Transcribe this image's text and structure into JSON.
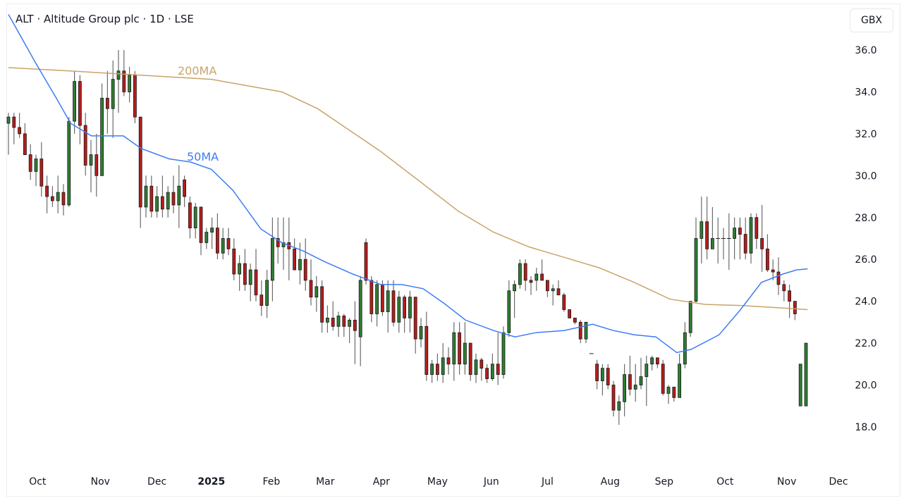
{
  "header": {
    "title": "ALT · Altitude Group plc · 1D · LSE",
    "currency": "GBX"
  },
  "colors": {
    "up": "#2e7d32",
    "down": "#b71c1c",
    "ma200": "#c9a36b",
    "ma50": "#3d7cf5",
    "wick": "#6b6b6b"
  },
  "chart_data": {
    "type": "candlestick",
    "title": "ALT · Altitude Group plc · 1D · LSE",
    "ylabel": "GBX",
    "ylim": [
      17.0,
      38.0
    ],
    "yticks": [
      "36.0",
      "34.0",
      "32.0",
      "30.0",
      "28.0",
      "26.0",
      "24.0",
      "22.0",
      "20.0",
      "18.0"
    ],
    "ytick_values": [
      36,
      34,
      32,
      30,
      28,
      26,
      24,
      22,
      20,
      18
    ],
    "xticks": [
      {
        "label": "Oct",
        "index": 5.3
      },
      {
        "label": "Nov",
        "index": 16.7
      },
      {
        "label": "Dec",
        "index": 27
      },
      {
        "label": "2025",
        "index": 36.9
      },
      {
        "label": "Feb",
        "index": 47.8
      },
      {
        "label": "Mar",
        "index": 57.6
      },
      {
        "label": "Apr",
        "index": 67.8
      },
      {
        "label": "May",
        "index": 78
      },
      {
        "label": "Jun",
        "index": 87.8
      },
      {
        "label": "Jul",
        "index": 98
      },
      {
        "label": "Aug",
        "index": 109.4
      },
      {
        "label": "Sep",
        "index": 119.2
      },
      {
        "label": "Oct",
        "index": 130.3
      },
      {
        "label": "Nov",
        "index": 141.5
      },
      {
        "label": "Dec",
        "index": 150.9
      }
    ],
    "ohlc": [
      [
        32.5,
        33,
        31,
        32.8
      ],
      [
        32.8,
        33,
        31.5,
        32.3
      ],
      [
        32.3,
        33,
        31.8,
        32.0
      ],
      [
        32,
        32.5,
        31,
        31
      ],
      [
        31,
        31.5,
        29.8,
        30.2
      ],
      [
        30.2,
        31,
        29.5,
        30.8
      ],
      [
        30.8,
        31.6,
        29,
        29.5
      ],
      [
        29.5,
        30,
        28.2,
        29
      ],
      [
        29,
        29.5,
        28.5,
        28.8
      ],
      [
        28.8,
        30,
        28.2,
        29.2
      ],
      [
        29.2,
        29.6,
        28.1,
        28.6
      ],
      [
        28.6,
        32.8,
        28.5,
        32.6
      ],
      [
        32.6,
        35,
        32,
        34.5
      ],
      [
        34.5,
        34.8,
        31.5,
        32.4
      ],
      [
        32.4,
        33,
        30,
        30.5
      ],
      [
        30.5,
        31.7,
        29.2,
        31
      ],
      [
        31,
        32,
        29,
        30.0
      ],
      [
        30,
        34.4,
        30,
        33.7
      ],
      [
        33.7,
        35,
        32,
        33.2
      ],
      [
        33.2,
        35.5,
        31.8,
        34.6
      ],
      [
        34.6,
        36,
        33,
        35
      ],
      [
        35,
        36,
        33.8,
        34.0
      ],
      [
        34,
        35.2,
        33.5,
        34.8
      ],
      [
        34.8,
        35,
        32.5,
        32.8
      ],
      [
        32.8,
        32.8,
        27.5,
        28.5
      ],
      [
        28.5,
        30,
        28,
        29.5
      ],
      [
        29.5,
        30,
        28,
        28.3
      ],
      [
        28.3,
        29.5,
        28,
        29
      ],
      [
        29,
        30,
        28,
        28.4
      ],
      [
        28.4,
        29.5,
        28,
        29.2
      ],
      [
        29.2,
        30,
        28.2,
        28.6
      ],
      [
        28.6,
        30.5,
        27.5,
        29.5
      ],
      [
        29.8,
        30,
        28.5,
        29.0
      ],
      [
        28.7,
        29,
        27,
        27.5
      ],
      [
        27.5,
        28.7,
        27,
        28.5
      ],
      [
        28.5,
        28.5,
        26.2,
        26.8
      ],
      [
        26.8,
        27.5,
        26.5,
        27.3
      ],
      [
        27.3,
        28,
        26.5,
        27.5
      ],
      [
        27.5,
        28.2,
        26,
        26.3
      ],
      [
        26.3,
        27.5,
        26,
        27.0
      ],
      [
        27,
        27.5,
        26.2,
        26.5
      ],
      [
        26.5,
        27,
        25,
        25.3
      ],
      [
        25.3,
        26.2,
        24.5,
        25.8
      ],
      [
        25.8,
        26.5,
        24.5,
        24.8
      ],
      [
        24.8,
        25.8,
        24,
        25.5
      ],
      [
        25.5,
        26.5,
        24,
        24.3
      ],
      [
        24.3,
        25,
        23.3,
        23.8
      ],
      [
        23.8,
        25.5,
        23.2,
        25
      ],
      [
        25,
        28,
        24,
        27.0
      ],
      [
        27,
        28,
        25.8,
        26.6
      ],
      [
        26.6,
        28,
        25.5,
        26.8
      ],
      [
        26.8,
        28,
        25,
        26.5
      ],
      [
        26.5,
        27,
        25.5,
        25.5
      ],
      [
        25.5,
        26.8,
        24.8,
        26.0
      ],
      [
        26.0,
        27,
        24.5,
        25.0
      ],
      [
        25,
        26,
        23.8,
        24.2
      ],
      [
        24.2,
        25.2,
        23.5,
        24.7
      ],
      [
        24.7,
        25,
        22.5,
        23.0
      ],
      [
        23,
        23.8,
        22.5,
        23.2
      ],
      [
        23.2,
        24,
        22.6,
        22.8
      ],
      [
        22.8,
        23.5,
        22.3,
        23.3
      ],
      [
        23.3,
        23.4,
        22.3,
        22.8
      ],
      [
        22.8,
        23.2,
        22,
        23.1
      ],
      [
        23.1,
        24,
        21,
        22.6
      ],
      [
        22.3,
        25.2,
        20.9,
        25.0
      ],
      [
        26.8,
        27,
        24.8,
        25.0
      ],
      [
        25,
        25.2,
        23,
        23.4
      ],
      [
        23.4,
        25,
        22.8,
        24.8
      ],
      [
        24.8,
        25,
        23.3,
        23.5
      ],
      [
        23.5,
        25,
        22.5,
        24.5
      ],
      [
        24.5,
        25,
        22.8,
        23.0
      ],
      [
        23,
        24.5,
        22.5,
        24.2
      ],
      [
        24.2,
        24.3,
        22.5,
        23.2
      ],
      [
        23.2,
        24.5,
        22.5,
        24.2
      ],
      [
        24.2,
        24.2,
        21.5,
        22.2
      ],
      [
        22.2,
        23.2,
        21.8,
        22.8
      ],
      [
        22.8,
        23.5,
        20.2,
        20.5
      ],
      [
        20.5,
        21.2,
        20.1,
        21.0
      ],
      [
        21,
        21.5,
        20.2,
        20.5
      ],
      [
        20.5,
        22,
        20.1,
        21.3
      ],
      [
        21.3,
        21.8,
        20.5,
        21.0
      ],
      [
        21,
        23,
        20.2,
        22.5
      ],
      [
        22.5,
        23,
        20.5,
        21.0
      ],
      [
        21,
        23,
        20.5,
        22.0
      ],
      [
        22,
        22,
        20.2,
        20.5
      ],
      [
        20.5,
        21.5,
        20.1,
        21.2
      ],
      [
        21.2,
        21.3,
        20.2,
        20.8
      ],
      [
        20.8,
        21,
        20.1,
        20.3
      ],
      [
        20.3,
        21.5,
        20.2,
        21.0
      ],
      [
        21,
        22.5,
        20.0,
        20.5
      ],
      [
        20.5,
        22.8,
        20.3,
        22.5
      ],
      [
        22.5,
        25,
        22.3,
        24.5
      ],
      [
        24.5,
        25,
        23.2,
        24.8
      ],
      [
        24.8,
        26,
        24.6,
        25.8
      ],
      [
        25.8,
        26,
        24.5,
        25.0
      ],
      [
        25,
        25.2,
        24.3,
        24.9
      ],
      [
        25.0,
        25.6,
        24.5,
        25.3
      ],
      [
        25.3,
        26,
        25,
        25.0
      ],
      [
        25,
        25,
        24.2,
        24.5
      ],
      [
        24.5,
        24.8,
        23.8,
        24.6
      ],
      [
        24.6,
        25,
        24.3,
        24.3
      ],
      [
        24.3,
        24.4,
        23.5,
        23.6
      ],
      [
        23.6,
        23.6,
        23.2,
        23.2
      ],
      [
        23.2,
        23.2,
        22.9,
        23.0
      ],
      [
        23.0,
        23.1,
        22.0,
        22.2
      ],
      [
        22.2,
        23,
        22.0,
        23.0
      ],
      [
        21.5,
        21.5,
        21.5,
        21.5
      ],
      [
        21.0,
        21.2,
        19.8,
        20.2
      ],
      [
        20.2,
        21,
        19.5,
        20.8
      ],
      [
        20.8,
        21,
        19.8,
        20.0
      ],
      [
        20.0,
        20.2,
        18.5,
        18.8
      ],
      [
        18.8,
        19.5,
        18.1,
        19.2
      ],
      [
        19.2,
        21,
        18.5,
        20.5
      ],
      [
        20.5,
        21.4,
        19.5,
        19.8
      ],
      [
        19.8,
        21,
        19.2,
        20.0
      ],
      [
        20.0,
        21.3,
        19.8,
        20.4
      ],
      [
        20.4,
        21.4,
        19.0,
        21.0
      ],
      [
        21.0,
        21.4,
        20.7,
        21.3
      ],
      [
        21.3,
        21.3,
        20.8,
        21.0
      ],
      [
        21,
        21.2,
        19.5,
        19.6
      ],
      [
        19.6,
        20,
        19.1,
        19.9
      ],
      [
        19.9,
        19.9,
        19.2,
        19.4
      ],
      [
        19.4,
        21.5,
        19.4,
        21.0
      ],
      [
        21,
        23,
        20.8,
        22.5
      ],
      [
        22.5,
        24,
        22.3,
        24
      ],
      [
        24,
        28,
        23.9,
        27
      ],
      [
        27,
        29,
        25.8,
        27.8
      ],
      [
        27.8,
        29,
        26,
        26.5
      ],
      [
        26.5,
        28.5,
        26.5,
        27.0
      ],
      [
        27,
        28,
        25.8,
        27.0
      ],
      [
        27,
        27.5,
        26,
        27.0
      ],
      [
        27,
        28.2,
        25.5,
        27.0
      ],
      [
        27,
        28,
        26,
        27.5
      ],
      [
        27.5,
        28,
        26,
        27.2
      ],
      [
        27.2,
        28,
        26,
        26.3
      ],
      [
        26.3,
        28.2,
        25.8,
        28.0
      ],
      [
        28,
        28.2,
        26.5,
        27.0
      ],
      [
        27,
        28.6,
        25.4,
        26.5
      ],
      [
        26.5,
        27.2,
        25.4,
        25.5
      ],
      [
        25.5,
        26,
        25,
        25.4
      ],
      [
        25.4,
        26.1,
        24.3,
        24.8
      ],
      [
        24.8,
        25,
        24,
        24.5
      ],
      [
        24.5,
        24.8,
        23.2,
        24.0
      ],
      [
        24,
        24,
        23.1,
        23.4
      ],
      [
        19,
        21,
        19,
        21
      ],
      [
        19,
        22,
        19,
        22
      ]
    ],
    "series": [
      {
        "name": "200MA",
        "label": "200MA",
        "points": [
          [
            0,
            35.16
          ],
          [
            11.3,
            35.0
          ],
          [
            24.1,
            34.8
          ],
          [
            36.9,
            34.6
          ],
          [
            49.7,
            34.0
          ],
          [
            56.2,
            33.2
          ],
          [
            67.7,
            31.15
          ],
          [
            75.4,
            29.6
          ],
          [
            81.8,
            28.3
          ],
          [
            88.2,
            27.3
          ],
          [
            94.6,
            26.6
          ],
          [
            101,
            26.1
          ],
          [
            107.4,
            25.6
          ],
          [
            113.8,
            24.9
          ],
          [
            120.3,
            24.1
          ],
          [
            126.7,
            23.85
          ],
          [
            133.1,
            23.8
          ],
          [
            139.5,
            23.7
          ],
          [
            145.3,
            23.6
          ]
        ]
      },
      {
        "name": "50MA",
        "label": "50MA",
        "points": [
          [
            0,
            37.7
          ],
          [
            4.9,
            35.4
          ],
          [
            8.7,
            33.7
          ],
          [
            11.3,
            32.5
          ],
          [
            15.1,
            31.9
          ],
          [
            20.9,
            31.9
          ],
          [
            24.1,
            31.3
          ],
          [
            29.2,
            30.8
          ],
          [
            33.1,
            30.65
          ],
          [
            36.9,
            30.3
          ],
          [
            40.8,
            29.3
          ],
          [
            45.9,
            27.45
          ],
          [
            49.7,
            26.8
          ],
          [
            53.6,
            26.4
          ],
          [
            57.4,
            25.9
          ],
          [
            62.6,
            25.3
          ],
          [
            67.7,
            24.8
          ],
          [
            71.5,
            24.8
          ],
          [
            75.4,
            24.6
          ],
          [
            79.2,
            23.9
          ],
          [
            83.1,
            23.1
          ],
          [
            88.2,
            22.6
          ],
          [
            92.1,
            22.3
          ],
          [
            95.9,
            22.5
          ],
          [
            101,
            22.6
          ],
          [
            106.2,
            22.9
          ],
          [
            110,
            22.6
          ],
          [
            113.8,
            22.4
          ],
          [
            117.7,
            22.3
          ],
          [
            121.5,
            21.55
          ],
          [
            124.1,
            21.7
          ],
          [
            129.2,
            22.4
          ],
          [
            133.1,
            23.6
          ],
          [
            136.9,
            24.9
          ],
          [
            140.8,
            25.3
          ],
          [
            143.3,
            25.5
          ],
          [
            145.3,
            25.55
          ]
        ]
      }
    ]
  }
}
